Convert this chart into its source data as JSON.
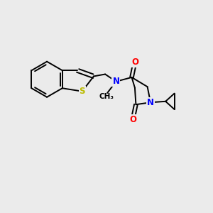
{
  "background_color": "#ebebeb",
  "atom_colors": {
    "C": "#000000",
    "N": "#0000ff",
    "O": "#ff0000",
    "S": "#bbbb00"
  },
  "figsize": [
    3.0,
    3.0
  ],
  "dpi": 100
}
